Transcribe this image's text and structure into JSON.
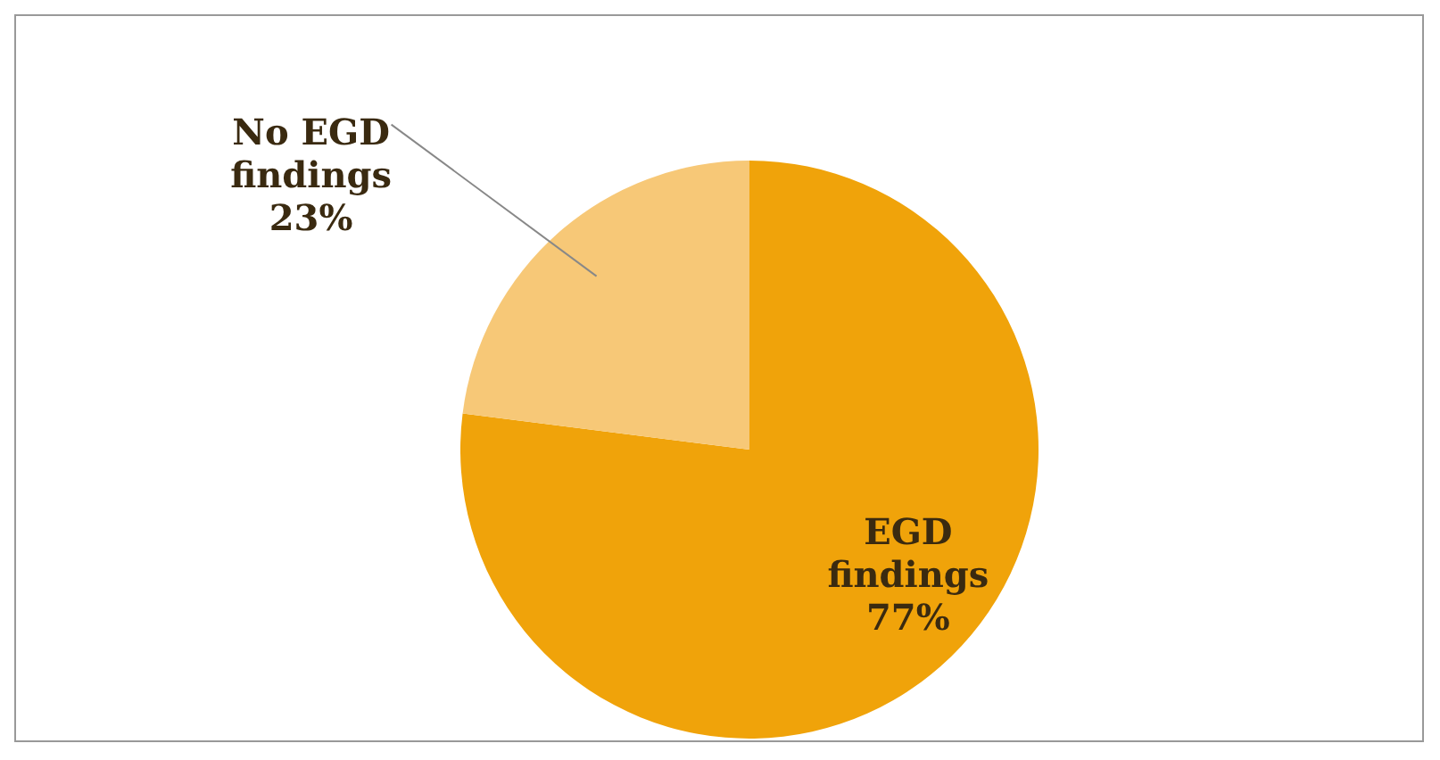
{
  "chart_data": {
    "type": "pie",
    "categories": [
      "EGD findings",
      "No EGD findings"
    ],
    "values": [
      77,
      23
    ],
    "colors": [
      "#f0a30a",
      "#f7c877"
    ],
    "value_labels": [
      "77%",
      "23%"
    ]
  }
}
